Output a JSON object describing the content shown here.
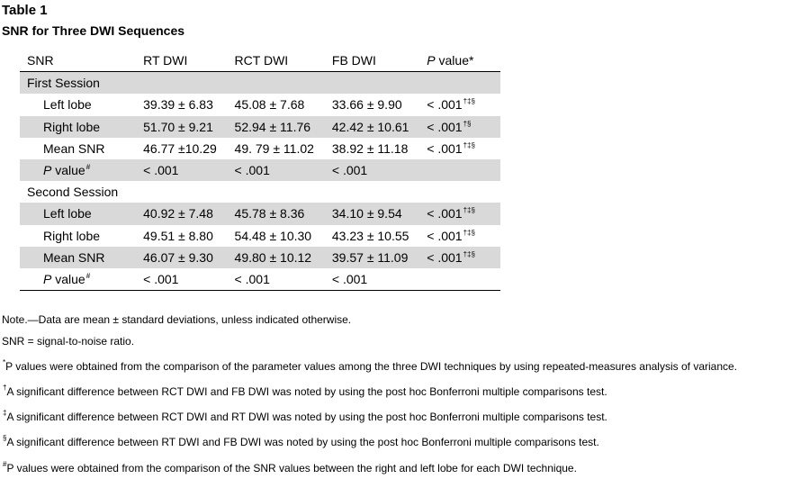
{
  "title": "Table 1",
  "subtitle": "SNR for Three DWI Sequences",
  "table": {
    "headers": {
      "snr": "SNR",
      "rt": "RT DWI",
      "rct": "RCT DWI",
      "fb": "FB DWI",
      "p_italic": "P",
      "p_rest": " value*"
    },
    "sections": [
      {
        "label": "First Session",
        "rows": [
          {
            "label": "Left lobe",
            "rt": "39.39 ± 6.83",
            "rct": "45.08 ± 7.68",
            "fb": "33.66 ± 9.90",
            "p": "< .001",
            "p_sup": "†‡§"
          },
          {
            "label": "Right lobe",
            "rt": "51.70 ± 9.21",
            "rct": "52.94 ± 11.76",
            "fb": "42.42 ± 10.61",
            "p": "< .001",
            "p_sup": "†§"
          },
          {
            "label": "Mean SNR",
            "rt": "46.77 ±10.29",
            "rct": "49. 79 ± 11.02",
            "fb": "38.92 ± 11.18",
            "p": "< .001",
            "p_sup": "†‡§"
          }
        ],
        "pvalue_row": {
          "label_italic": "P",
          "label_rest": " value",
          "label_sup": "#",
          "rt": "< .001",
          "rct": "< .001",
          "fb": "< .001"
        }
      },
      {
        "label": "Second Session",
        "rows": [
          {
            "label": "Left lobe",
            "rt": "40.92 ± 7.48",
            "rct": "45.78 ± 8.36",
            "fb": "34.10 ± 9.54",
            "p": "< .001",
            "p_sup": "†‡§"
          },
          {
            "label": "Right lobe",
            "rt": "49.51 ± 8.80",
            "rct": "54.48 ± 10.30",
            "fb": "43.23 ± 10.55",
            "p": "< .001",
            "p_sup": "†‡§"
          },
          {
            "label": "Mean SNR",
            "rt": "46.07 ± 9.30",
            "rct": "49.80 ± 10.12",
            "fb": "39.57 ± 11.09",
            "p": "< .001",
            "p_sup": "†‡§"
          }
        ],
        "pvalue_row": {
          "label_italic": "P",
          "label_rest": " value",
          "label_sup": "#",
          "rt": "< .001",
          "rct": "< .001",
          "fb": "< .001"
        }
      }
    ]
  },
  "notes": [
    {
      "sup": "",
      "text": "Note.—Data are mean ± standard deviations, unless indicated otherwise."
    },
    {
      "sup": "",
      "text": "SNR = signal-to-noise ratio."
    },
    {
      "sup": "*",
      "text": "P values were obtained from the comparison of the parameter values among the three DWI techniques by using repeated-measures analysis of variance."
    },
    {
      "sup": "†",
      "text": "A significant difference between RCT DWI and FB DWI was noted by using the post hoc Bonferroni multiple comparisons test."
    },
    {
      "sup": "‡",
      "text": "A significant difference between RCT DWI and RT DWI was noted by using the post hoc Bonferroni multiple comparisons test."
    },
    {
      "sup": "§",
      "text": "A significant difference between RT DWI and FB DWI was noted by using the post hoc Bonferroni multiple comparisons test."
    },
    {
      "sup": "#",
      "text": "P values were obtained from the comparison of the SNR values between the right and left lobe for each DWI technique."
    }
  ]
}
